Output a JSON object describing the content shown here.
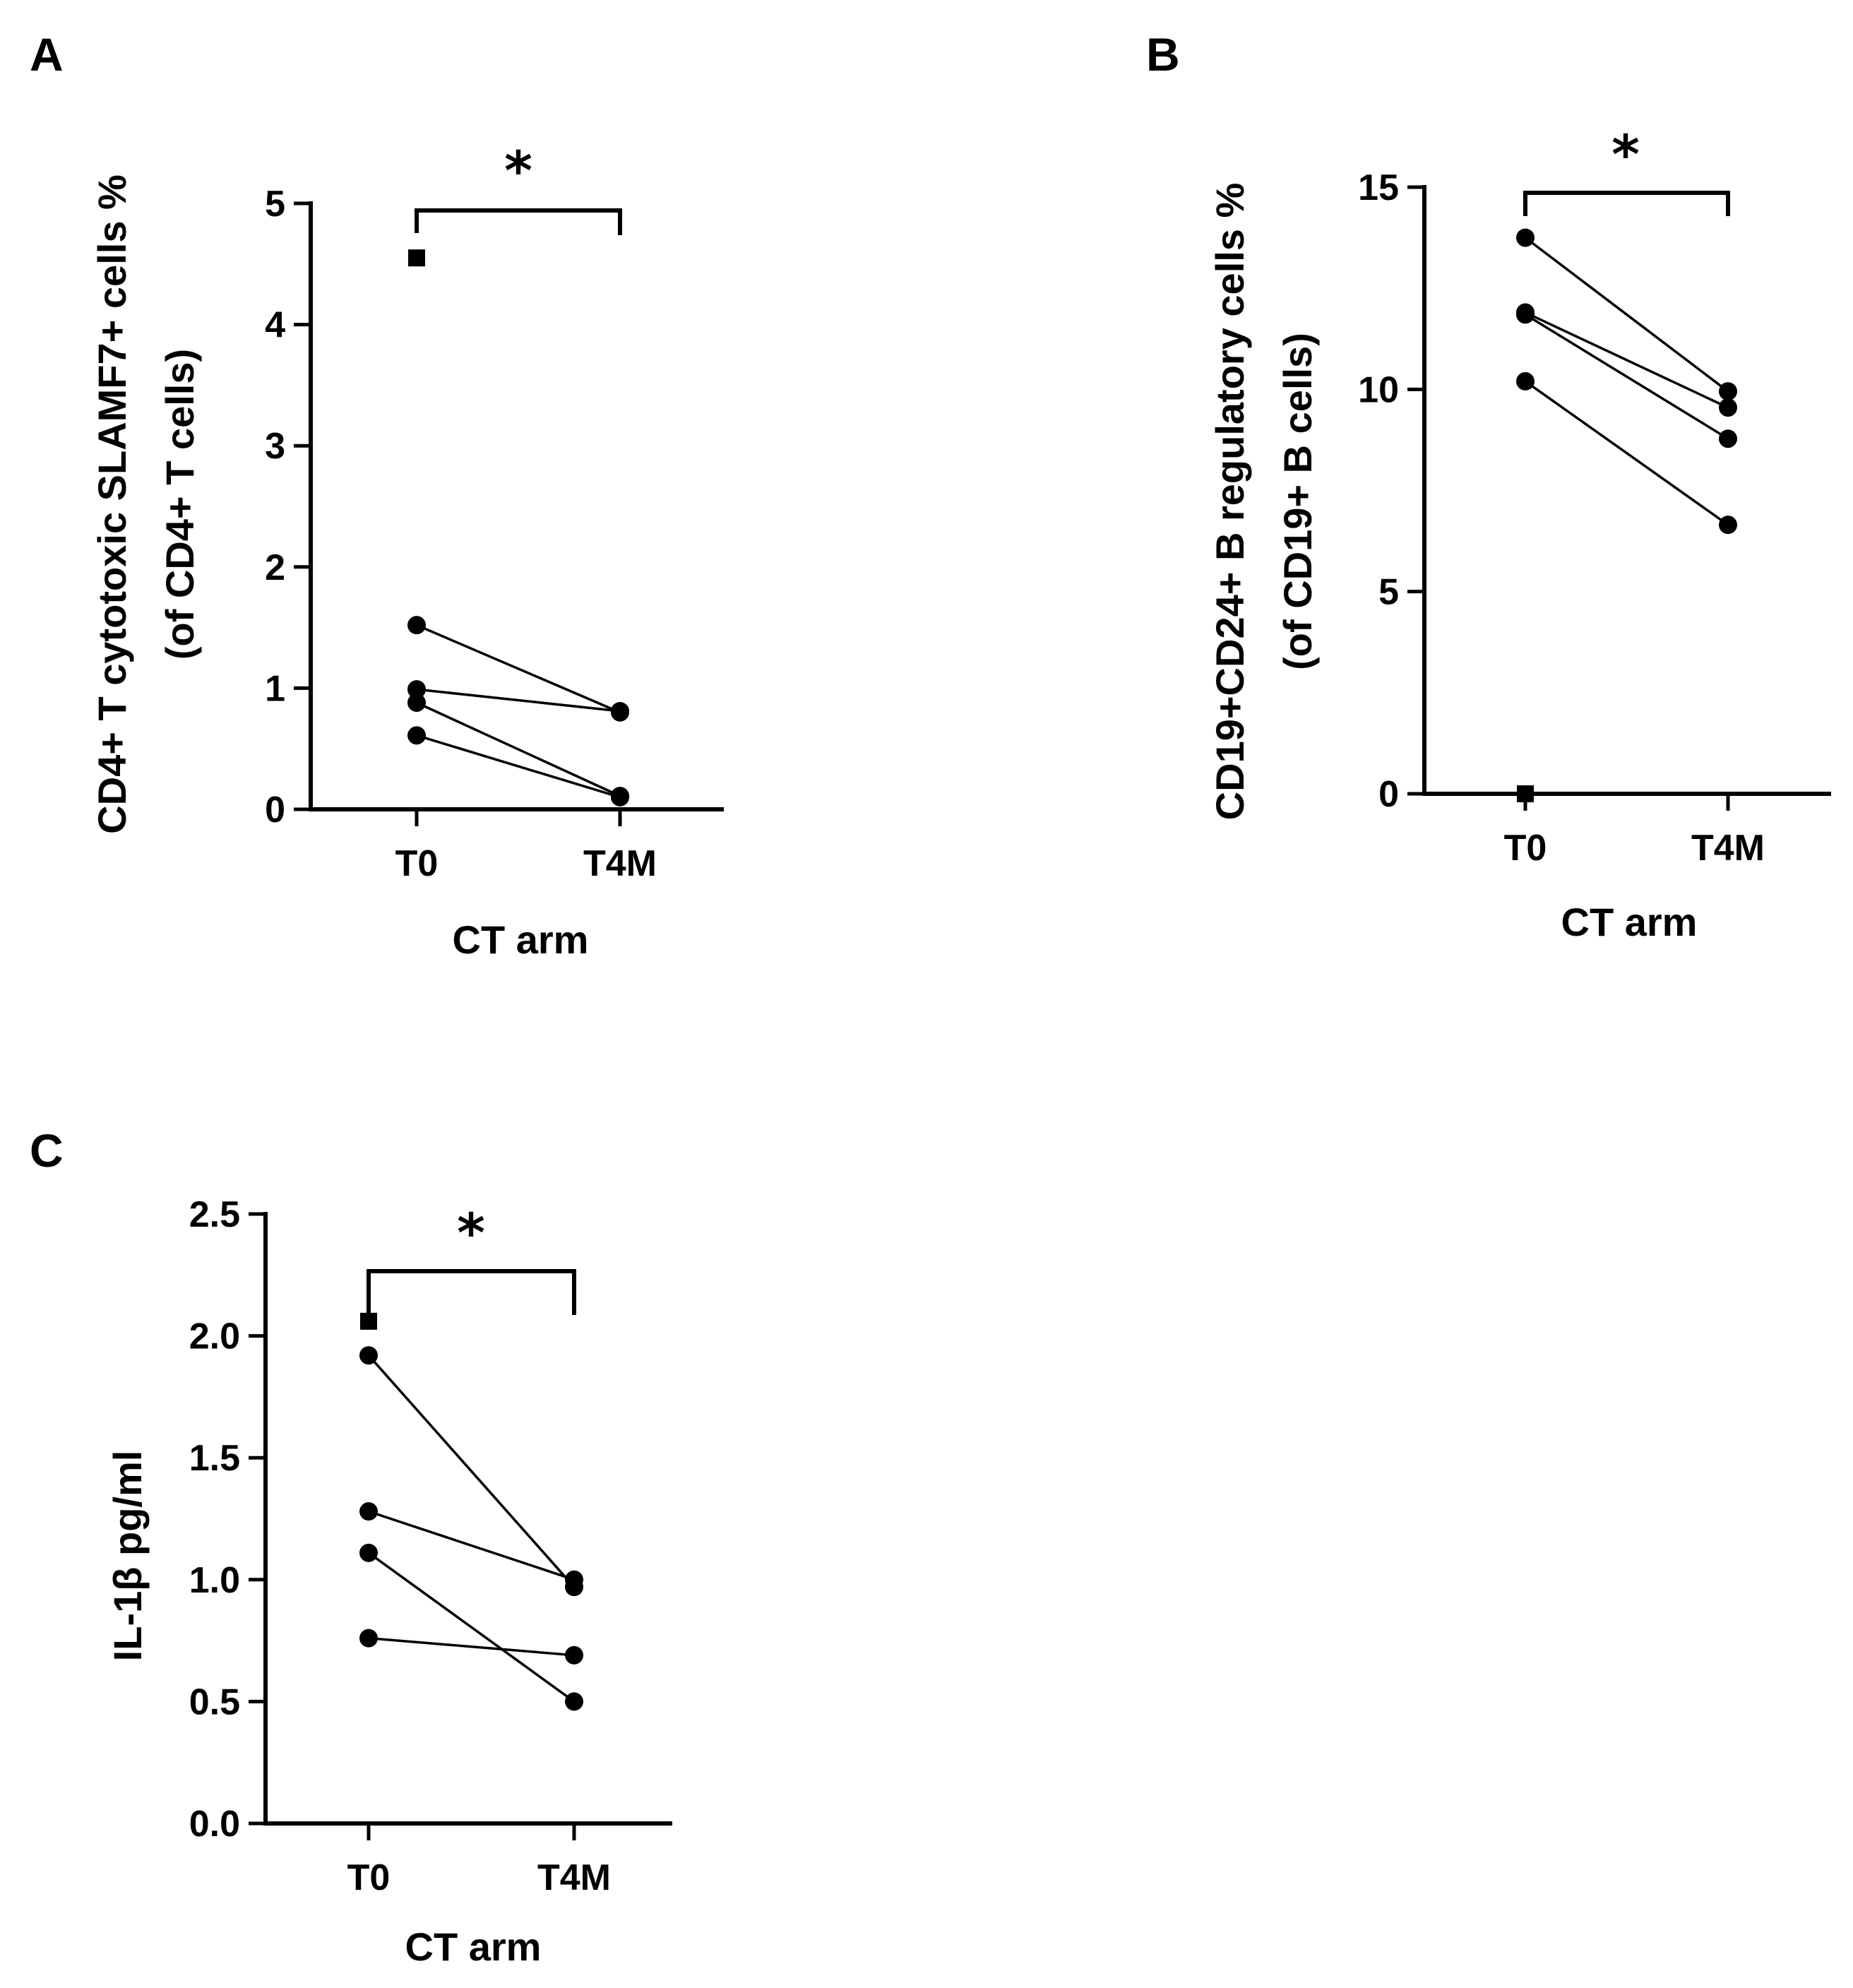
{
  "colors": {
    "marks": "#000000",
    "background": "#ffffff"
  },
  "chart_data": [
    {
      "panel": "A",
      "type": "scatter",
      "subtype": "paired-dot",
      "ylabel_line1": "CD4+ T cytotoxic SLAMF7+ cells %",
      "ylabel_line2": "(of CD4+ T cells)",
      "xlabel": "CT arm",
      "categories": [
        "T0",
        "T4M"
      ],
      "ylim": [
        0,
        5
      ],
      "yticks": [
        0,
        1,
        2,
        3,
        4,
        5
      ],
      "ytick_labels": [
        "0",
        "1",
        "2",
        "3",
        "4",
        "5"
      ],
      "pairs": [
        {
          "T0": 1.52,
          "T4M": 0.8
        },
        {
          "T0": 0.99,
          "T4M": 0.81
        },
        {
          "T0": 0.88,
          "T4M": 0.11
        },
        {
          "T0": 0.61,
          "T4M": 0.1
        }
      ],
      "unpaired": [
        {
          "category": "T0",
          "value": 4.55,
          "marker": "square"
        }
      ],
      "significance": "*"
    },
    {
      "panel": "B",
      "type": "scatter",
      "subtype": "paired-dot",
      "ylabel_line1": "CD19+CD24+ B regulatory cells %",
      "ylabel_line2": "(of CD19+ B cells)",
      "xlabel": "CT arm",
      "categories": [
        "T0",
        "T4M"
      ],
      "ylim": [
        0,
        15
      ],
      "yticks": [
        0,
        5,
        10,
        15
      ],
      "ytick_labels": [
        "0",
        "5",
        "10",
        "15"
      ],
      "pairs": [
        {
          "T0": 13.75,
          "T4M": 9.95
        },
        {
          "T0": 11.9,
          "T4M": 9.55
        },
        {
          "T0": 11.85,
          "T4M": 8.78
        },
        {
          "T0": 10.2,
          "T4M": 6.65
        }
      ],
      "unpaired": [
        {
          "category": "T0",
          "value": 0.0,
          "marker": "square"
        }
      ],
      "significance": "*"
    },
    {
      "panel": "C",
      "type": "scatter",
      "subtype": "paired-dot",
      "ylabel_line1": "IL-1β pg/ml",
      "ylabel_line2": "",
      "xlabel": "CT arm",
      "categories": [
        "T0",
        "T4M"
      ],
      "ylim": [
        0,
        2.5
      ],
      "yticks": [
        0,
        0.5,
        1.0,
        1.5,
        2.0,
        2.5
      ],
      "ytick_labels": [
        "0.0",
        "0.5",
        "1.0",
        "1.5",
        "2.0",
        "2.5"
      ],
      "pairs": [
        {
          "T0": 1.92,
          "T4M": 0.97
        },
        {
          "T0": 1.28,
          "T4M": 1.0
        },
        {
          "T0": 1.11,
          "T4M": 0.5
        },
        {
          "T0": 0.76,
          "T4M": 0.69
        }
      ],
      "unpaired": [
        {
          "category": "T0",
          "value": 2.06,
          "marker": "square"
        }
      ],
      "significance": "*"
    }
  ]
}
